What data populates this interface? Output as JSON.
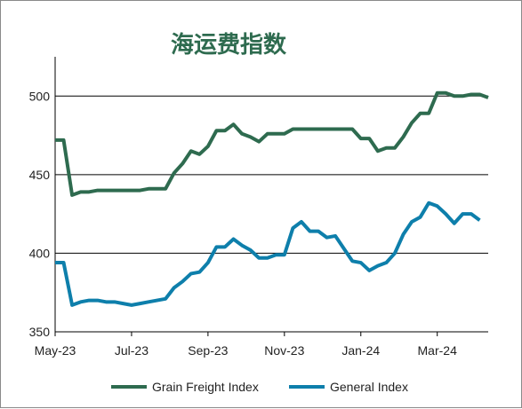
{
  "chart_data": {
    "type": "line",
    "title": "海运费指数",
    "xlabel": "",
    "ylabel": "",
    "ylim": [
      350,
      525
    ],
    "yticks": [
      350,
      400,
      450,
      500
    ],
    "x_tick_labels": [
      "May-23",
      "Jul-23",
      "Sep-23",
      "Nov-23",
      "Jan-24",
      "Mar-24"
    ],
    "x_tick_weeks": [
      0,
      9,
      18,
      27,
      36,
      45
    ],
    "grid": "horizontal",
    "legend_position": "bottom",
    "x_start": "May-23",
    "x_interval": "weekly",
    "series": [
      {
        "name": "Grain Freight Index",
        "color": "#2e6b4f",
        "values": [
          472,
          472,
          437,
          439,
          439,
          440,
          440,
          440,
          440,
          440,
          440,
          441,
          441,
          441,
          451,
          457,
          465,
          463,
          468,
          478,
          478,
          482,
          476,
          474,
          471,
          476,
          476,
          476,
          479,
          479,
          479,
          479,
          479,
          479,
          479,
          479,
          473,
          473,
          465,
          467,
          467,
          474,
          483,
          489,
          489,
          502,
          502,
          500,
          500,
          501,
          501,
          499
        ]
      },
      {
        "name": "General Index",
        "color": "#0e7fab",
        "values": [
          394,
          394,
          367,
          369,
          370,
          370,
          369,
          369,
          368,
          367,
          368,
          369,
          370,
          371,
          378,
          382,
          387,
          388,
          394,
          404,
          404,
          409,
          405,
          402,
          397,
          397,
          399,
          399,
          416,
          420,
          414,
          414,
          410,
          411,
          403,
          395,
          394,
          389,
          392,
          394,
          400,
          412,
          420,
          423,
          432,
          430,
          425,
          419,
          425,
          425,
          421
        ]
      }
    ]
  }
}
